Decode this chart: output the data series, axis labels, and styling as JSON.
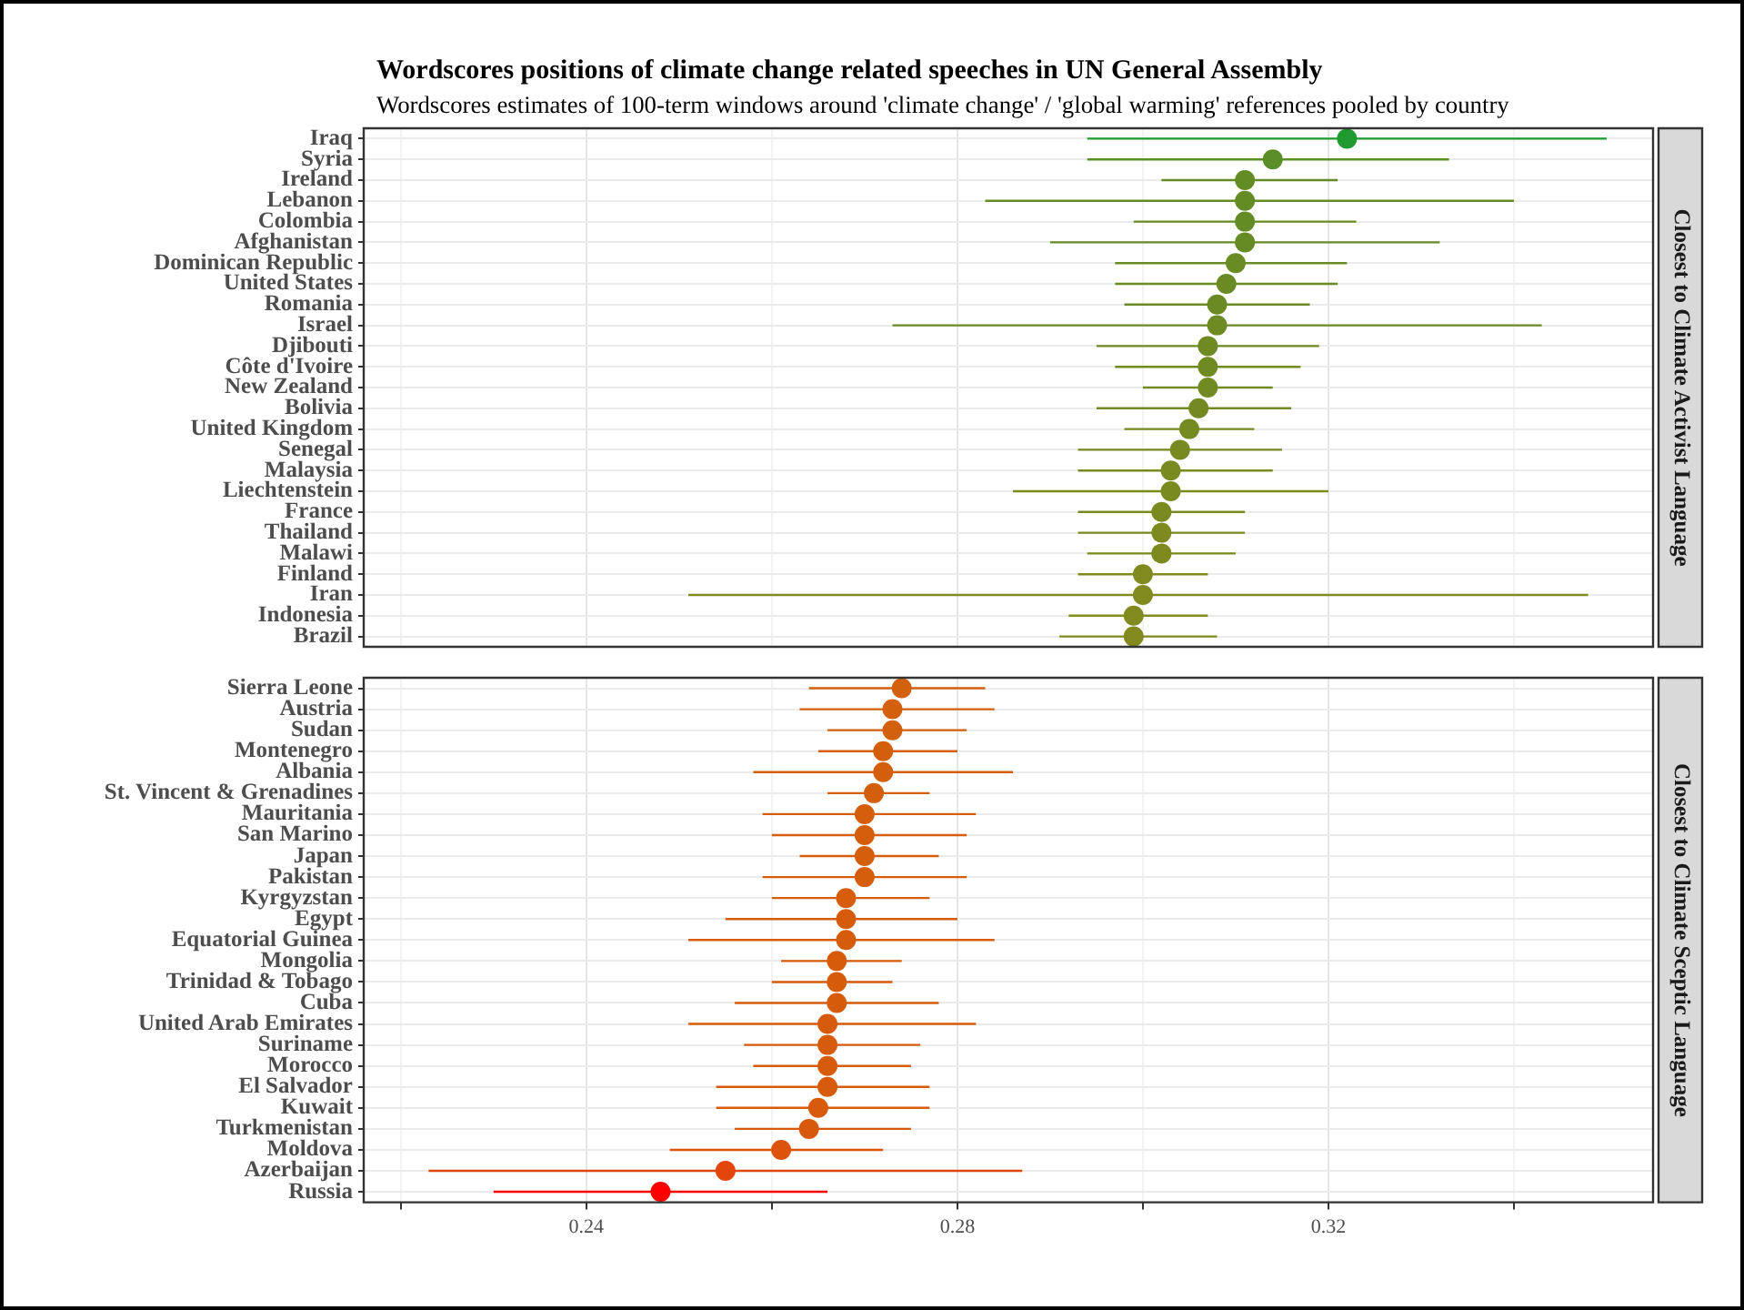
{
  "chart_data": [
    {
      "type": "scatter",
      "orientation": "horizontal",
      "title": "Wordscores positions of climate change related speeches in UN General Assembly",
      "subtitle": "Wordscores estimates of 100-term windows around 'climate change' / 'global warming' references pooled by country",
      "categories": [
        "Iraq",
        "Syria",
        "Ireland",
        "Lebanon",
        "Colombia",
        "Afghanistan",
        "Dominican Republic",
        "United States",
        "Romania",
        "Israel",
        "Djibouti",
        "Côte d'Ivoire",
        "New Zealand",
        "Bolivia",
        "United Kingdom",
        "Senegal",
        "Malaysia",
        "Liechtenstein",
        "France",
        "Thailand",
        "Malawi",
        "Finland",
        "Iran",
        "Indonesia",
        "Brazil"
      ],
      "values": [
        0.322,
        0.314,
        0.311,
        0.311,
        0.311,
        0.311,
        0.31,
        0.309,
        0.308,
        0.308,
        0.307,
        0.307,
        0.307,
        0.306,
        0.305,
        0.304,
        0.303,
        0.303,
        0.302,
        0.302,
        0.302,
        0.3,
        0.3,
        0.299,
        0.299
      ],
      "errors": [
        [
          0.294,
          0.35
        ],
        [
          0.294,
          0.333
        ],
        [
          0.302,
          0.321
        ],
        [
          0.283,
          0.34
        ],
        [
          0.299,
          0.323
        ],
        [
          0.29,
          0.332
        ],
        [
          0.297,
          0.322
        ],
        [
          0.297,
          0.321
        ],
        [
          0.298,
          0.318
        ],
        [
          0.273,
          0.343
        ],
        [
          0.295,
          0.319
        ],
        [
          0.297,
          0.317
        ],
        [
          0.3,
          0.314
        ],
        [
          0.295,
          0.316
        ],
        [
          0.298,
          0.312
        ],
        [
          0.293,
          0.315
        ],
        [
          0.293,
          0.314
        ],
        [
          0.286,
          0.32
        ],
        [
          0.293,
          0.311
        ],
        [
          0.293,
          0.311
        ],
        [
          0.294,
          0.31
        ],
        [
          0.293,
          0.307
        ],
        [
          0.251,
          0.348
        ],
        [
          0.292,
          0.307
        ],
        [
          0.291,
          0.308
        ]
      ],
      "colors": [
        "#1f9a2e",
        "#5a8f27",
        "#648c24",
        "#648c24",
        "#648c24",
        "#668b24",
        "#688b23",
        "#6a8b23",
        "#6c8a23",
        "#6d8a23",
        "#6f8a22",
        "#708a22",
        "#718a22",
        "#738a22",
        "#758a21",
        "#778a21",
        "#798a21",
        "#798a21",
        "#7b8a20",
        "#7c8a20",
        "#7c8a20",
        "#808a1f",
        "#808a1f",
        "#818a1f",
        "#828a1f"
      ],
      "xlim": [
        0.216,
        0.355
      ],
      "xticks": [
        {
          "value": 0.22,
          "label": null
        },
        0.24,
        {
          "value": 0.26,
          "label": null
        },
        0.28,
        {
          "value": 0.3,
          "label": null
        },
        0.32,
        {
          "value": 0.34,
          "label": null
        }
      ],
      "grid": true,
      "marker": "circle",
      "tick_labels": "y",
      "annotations": [
        "Closest to Climate Activist Language"
      ]
    },
    {
      "type": "scatter",
      "orientation": "horizontal",
      "categories": [
        "Sierra Leone",
        "Austria",
        "Sudan",
        "Montenegro",
        "Albania",
        "St. Vincent & Grenadines",
        "Mauritania",
        "San Marino",
        "Japan",
        "Pakistan",
        "Kyrgyzstan",
        "Egypt",
        "Equatorial Guinea",
        "Mongolia",
        "Trinidad & Tobago",
        "Cuba",
        "United Arab Emirates",
        "Suriname",
        "Morocco",
        "El Salvador",
        "Kuwait",
        "Turkmenistan",
        "Moldova",
        "Azerbaijan",
        "Russia"
      ],
      "values": [
        0.274,
        0.273,
        0.273,
        0.272,
        0.272,
        0.271,
        0.27,
        0.27,
        0.27,
        0.27,
        0.268,
        0.268,
        0.268,
        0.267,
        0.267,
        0.267,
        0.266,
        0.266,
        0.266,
        0.266,
        0.265,
        0.264,
        0.261,
        0.255,
        0.248
      ],
      "errors": [
        [
          0.264,
          0.283
        ],
        [
          0.263,
          0.284
        ],
        [
          0.266,
          0.281
        ],
        [
          0.265,
          0.28
        ],
        [
          0.258,
          0.286
        ],
        [
          0.266,
          0.277
        ],
        [
          0.259,
          0.282
        ],
        [
          0.26,
          0.281
        ],
        [
          0.263,
          0.278
        ],
        [
          0.259,
          0.281
        ],
        [
          0.26,
          0.277
        ],
        [
          0.255,
          0.28
        ],
        [
          0.251,
          0.284
        ],
        [
          0.261,
          0.274
        ],
        [
          0.26,
          0.273
        ],
        [
          0.256,
          0.278
        ],
        [
          0.251,
          0.282
        ],
        [
          0.257,
          0.276
        ],
        [
          0.258,
          0.275
        ],
        [
          0.254,
          0.277
        ],
        [
          0.254,
          0.277
        ],
        [
          0.256,
          0.275
        ],
        [
          0.249,
          0.272
        ],
        [
          0.223,
          0.287
        ],
        [
          0.23,
          0.266
        ]
      ],
      "colors": [
        "#d2600c",
        "#d2600c",
        "#d2600c",
        "#d35f0c",
        "#d35f0c",
        "#d35f0c",
        "#d45e0c",
        "#d45e0c",
        "#d45e0c",
        "#d45e0c",
        "#d55d0c",
        "#d55c0c",
        "#d55c0c",
        "#d65c0c",
        "#d65c0c",
        "#d65c0c",
        "#d75b0c",
        "#d75b0c",
        "#d75b0c",
        "#d75b0c",
        "#d85a0c",
        "#d8590c",
        "#dc540c",
        "#e2460d",
        "#ff0000"
      ],
      "xlim": [
        0.216,
        0.355
      ],
      "xticks": [
        {
          "value": 0.22,
          "label": null
        },
        0.24,
        {
          "value": 0.26,
          "label": null
        },
        0.28,
        {
          "value": 0.3,
          "label": null
        },
        0.32,
        {
          "value": 0.34,
          "label": null
        }
      ],
      "grid": true,
      "marker": "circle",
      "annotations": [
        "Closest to Climate Sceptic Language"
      ]
    }
  ]
}
